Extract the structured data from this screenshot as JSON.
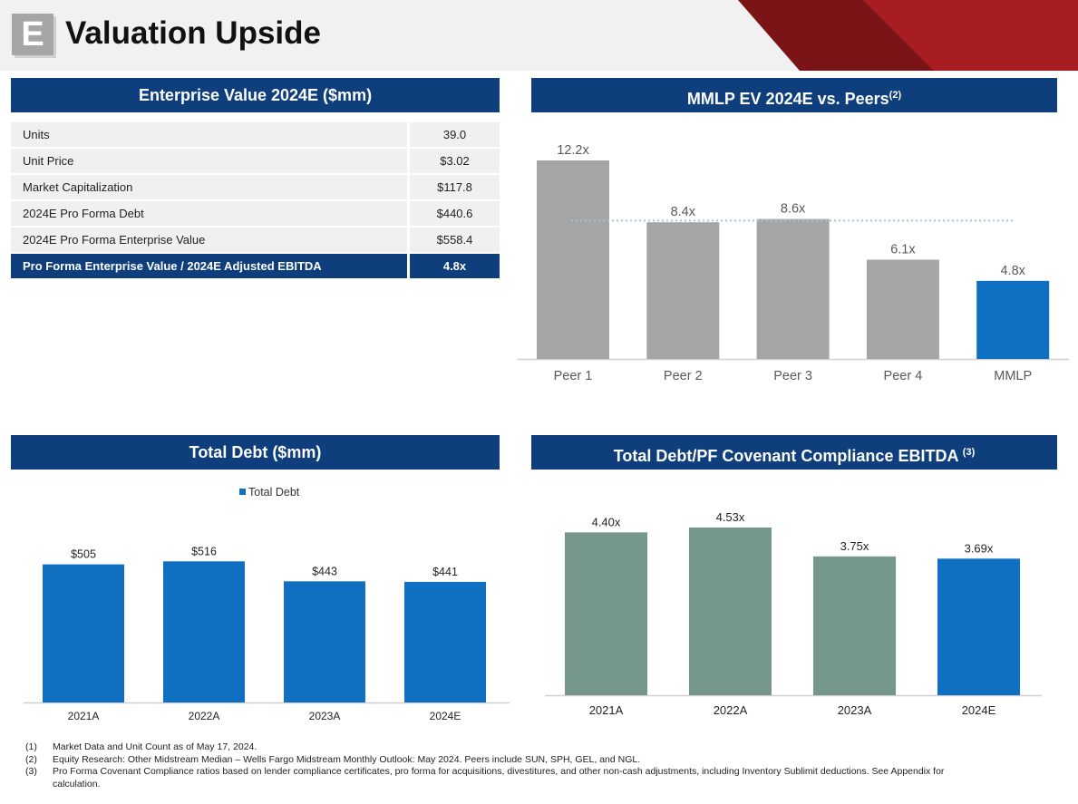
{
  "header": {
    "section_letter": "E",
    "title": "Valuation Upside"
  },
  "panels": {
    "ev_table_title": "Enterprise Value 2024E ($mm)",
    "peers_title": "MMLP EV 2024E vs. Peers",
    "peers_title_note": "(2)",
    "debt_title": "Total Debt ($mm)",
    "leverage_title": "Total Debt/PF Covenant Compliance EBITDA",
    "leverage_title_note": "(3)"
  },
  "ev_table": {
    "rows": [
      {
        "label": "Units",
        "value": "39.0"
      },
      {
        "label": "Unit Price",
        "value": "$3.02"
      },
      {
        "label": "Market Capitalization",
        "value": "$117.8"
      },
      {
        "label": "2024E Pro Forma Debt",
        "value": "$440.6"
      },
      {
        "label": "2024E Pro Forma Enterprise Value",
        "value": "$558.4"
      },
      {
        "label": "Pro Forma Enterprise Value / 2024E Adjusted EBITDA",
        "value": "4.8x"
      }
    ]
  },
  "chart_data": [
    {
      "type": "bar",
      "title": "MMLP EV 2024E vs. Peers",
      "categories": [
        "Peer 1",
        "Peer 2",
        "Peer 3",
        "Peer 4",
        "MMLP"
      ],
      "values": [
        12.2,
        8.4,
        8.6,
        6.1,
        4.8
      ],
      "data_labels": [
        "12.2x",
        "8.4x",
        "8.6x",
        "6.1x",
        "4.8x"
      ],
      "reference_line": 8.5,
      "colors": [
        "#a5a5a5",
        "#a5a5a5",
        "#a5a5a5",
        "#a5a5a5",
        "#0f70c1"
      ],
      "ylim": [
        0,
        12.2
      ],
      "xlabel": "",
      "ylabel": ""
    },
    {
      "type": "bar",
      "title": "Total Debt ($mm)",
      "legend": "Total Debt",
      "categories": [
        "2021A",
        "2022A",
        "2023A",
        "2024E"
      ],
      "values": [
        505,
        516,
        443,
        441
      ],
      "data_labels": [
        "$505",
        "$516",
        "$443",
        "$441"
      ],
      "colors": [
        "#0f70c1",
        "#0f70c1",
        "#0f70c1",
        "#0f70c1"
      ],
      "ylim": [
        0,
        580
      ],
      "xlabel": "",
      "ylabel": ""
    },
    {
      "type": "bar",
      "title": "Total Debt/PF Covenant Compliance EBITDA",
      "categories": [
        "2021A",
        "2022A",
        "2023A",
        "2024E"
      ],
      "values": [
        4.4,
        4.53,
        3.75,
        3.69
      ],
      "data_labels": [
        "4.40x",
        "4.53x",
        "3.75x",
        "3.69x"
      ],
      "colors": [
        "#76988a",
        "#76988a",
        "#76988a",
        "#0f70c1"
      ],
      "ylim": [
        0,
        4.53
      ],
      "xlabel": "",
      "ylabel": ""
    }
  ],
  "footnotes": [
    {
      "num": "(1)",
      "text": "Market Data and Unit Count as of May 17, 2024."
    },
    {
      "num": "(2)",
      "text": "Equity Research: Other Midstream Median – Wells Fargo Midstream Monthly Outlook: May 2024. Peers include SUN, SPH, GEL, and NGL."
    },
    {
      "num": "(3)",
      "text": "Pro Forma Covenant Compliance ratios based on lender compliance certificates, pro forma for acquisitions, divestitures, and other non-cash adjustments, including Inventory Sublimit deductions. See Appendix for calculation."
    }
  ]
}
